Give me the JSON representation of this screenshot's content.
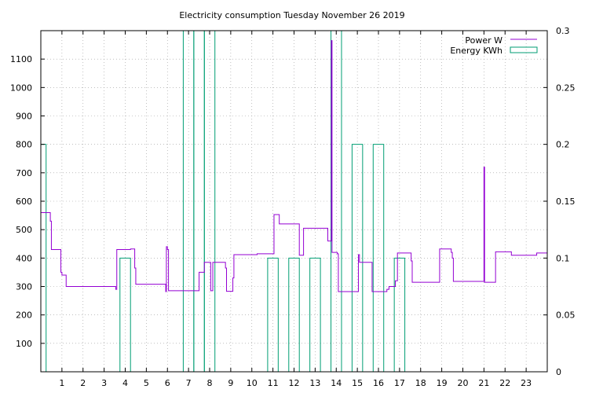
{
  "chart_data": {
    "type": "line",
    "title": "Electricity consumption Tuesday November 26 2019",
    "xlim": [
      0,
      24
    ],
    "ylim": [
      0,
      1200
    ],
    "y2lim": [
      0,
      0.3
    ],
    "xticks": [
      1,
      2,
      3,
      4,
      5,
      6,
      7,
      8,
      9,
      10,
      11,
      12,
      13,
      14,
      15,
      16,
      17,
      18,
      19,
      20,
      21,
      22,
      23
    ],
    "yticks": [
      100,
      200,
      300,
      400,
      500,
      600,
      700,
      800,
      900,
      1000,
      1100
    ],
    "y2ticks": [
      0,
      0.05,
      0.1,
      0.15,
      0.2,
      0.25,
      0.3
    ],
    "grid": true,
    "legend_position": "top-right",
    "series": [
      {
        "name": "Power W",
        "axis": "left",
        "style": "steps",
        "color": "#9400d3",
        "points": [
          [
            0,
            560
          ],
          [
            0.4,
            560
          ],
          [
            0.45,
            530
          ],
          [
            0.5,
            430
          ],
          [
            0.9,
            430
          ],
          [
            0.95,
            350
          ],
          [
            1.0,
            340
          ],
          [
            1.15,
            340
          ],
          [
            1.2,
            300
          ],
          [
            3.5,
            300
          ],
          [
            3.55,
            290
          ],
          [
            3.6,
            430
          ],
          [
            4.2,
            430
          ],
          [
            4.25,
            432
          ],
          [
            4.4,
            432
          ],
          [
            4.45,
            365
          ],
          [
            4.5,
            308
          ],
          [
            5.9,
            308
          ],
          [
            5.92,
            282
          ],
          [
            5.95,
            440
          ],
          [
            6.0,
            430
          ],
          [
            6.05,
            285
          ],
          [
            7.45,
            285
          ],
          [
            7.5,
            350
          ],
          [
            7.7,
            350
          ],
          [
            7.75,
            385
          ],
          [
            8.0,
            385
          ],
          [
            8.05,
            285
          ],
          [
            8.12,
            285
          ],
          [
            8.15,
            385
          ],
          [
            8.7,
            385
          ],
          [
            8.75,
            365
          ],
          [
            8.8,
            283
          ],
          [
            9.05,
            283
          ],
          [
            9.1,
            330
          ],
          [
            9.15,
            412
          ],
          [
            10.2,
            412
          ],
          [
            10.25,
            415
          ],
          [
            11.0,
            415
          ],
          [
            11.05,
            553
          ],
          [
            11.25,
            553
          ],
          [
            11.3,
            520
          ],
          [
            12.2,
            520
          ],
          [
            12.25,
            410
          ],
          [
            12.4,
            410
          ],
          [
            12.45,
            505
          ],
          [
            13.55,
            505
          ],
          [
            13.6,
            460
          ],
          [
            13.75,
            460
          ],
          [
            13.77,
            1165
          ],
          [
            13.8,
            420
          ],
          [
            14.0,
            420
          ],
          [
            14.05,
            415
          ],
          [
            14.1,
            282
          ],
          [
            15.0,
            282
          ],
          [
            15.05,
            412
          ],
          [
            15.1,
            385
          ],
          [
            15.65,
            385
          ],
          [
            15.7,
            282
          ],
          [
            16.35,
            282
          ],
          [
            16.4,
            290
          ],
          [
            16.5,
            300
          ],
          [
            16.75,
            300
          ],
          [
            16.8,
            320
          ],
          [
            16.9,
            418
          ],
          [
            17.5,
            418
          ],
          [
            17.55,
            390
          ],
          [
            17.6,
            315
          ],
          [
            18.85,
            315
          ],
          [
            18.9,
            432
          ],
          [
            19.4,
            432
          ],
          [
            19.45,
            420
          ],
          [
            19.5,
            400
          ],
          [
            19.55,
            318
          ],
          [
            20.95,
            318
          ],
          [
            21.0,
            720
          ],
          [
            21.03,
            315
          ],
          [
            21.5,
            315
          ],
          [
            21.55,
            422
          ],
          [
            22.25,
            422
          ],
          [
            22.3,
            410
          ],
          [
            23.45,
            410
          ],
          [
            23.5,
            418
          ],
          [
            24,
            418
          ]
        ]
      },
      {
        "name": "Energy KWh",
        "axis": "right",
        "style": "impulses",
        "color": "#009e73",
        "bars": [
          {
            "x0": 0.0,
            "x1": 0.25,
            "y": 0.2
          },
          {
            "x0": 3.75,
            "x1": 4.25,
            "y": 0.1
          },
          {
            "x0": 6.75,
            "x1": 7.25,
            "y": 0.3
          },
          {
            "x0": 7.25,
            "x1": 7.75,
            "y": 0.3
          },
          {
            "x0": 7.75,
            "x1": 8.25,
            "y": 0.3
          },
          {
            "x0": 10.75,
            "x1": 11.25,
            "y": 0.1
          },
          {
            "x0": 11.75,
            "x1": 12.25,
            "y": 0.1
          },
          {
            "x0": 12.75,
            "x1": 13.25,
            "y": 0.1
          },
          {
            "x0": 13.75,
            "x1": 14.25,
            "y": 0.3
          },
          {
            "x0": 14.75,
            "x1": 15.25,
            "y": 0.2
          },
          {
            "x0": 15.75,
            "x1": 16.25,
            "y": 0.2
          },
          {
            "x0": 16.75,
            "x1": 17.25,
            "y": 0.1
          }
        ]
      }
    ]
  }
}
